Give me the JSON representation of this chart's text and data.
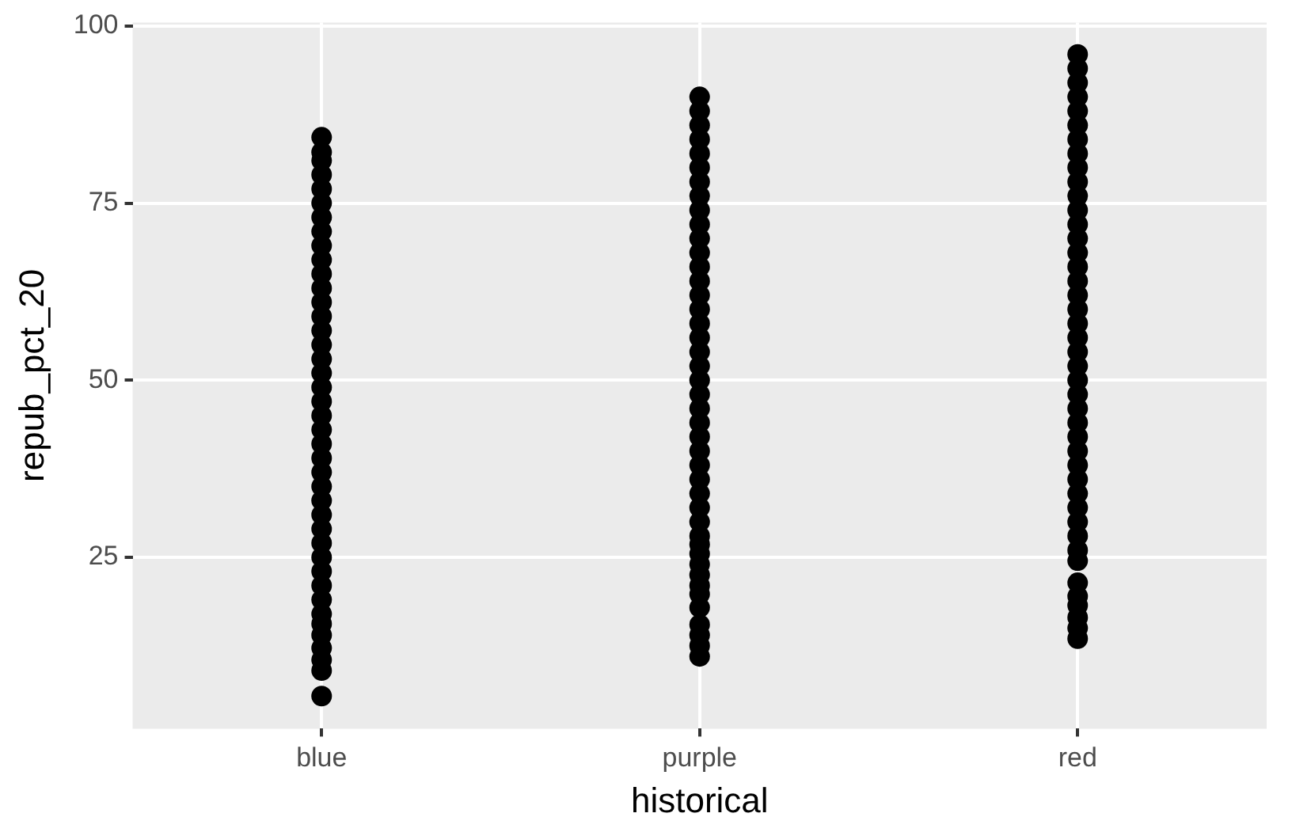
{
  "chart_data": {
    "type": "scatter",
    "categories": [
      "blue",
      "purple",
      "red"
    ],
    "xlabel": "historical",
    "ylabel": "repub_pct_20",
    "ylim": [
      0.8,
      100.5
    ],
    "yticks": [
      25,
      50,
      75,
      100
    ],
    "grid": true,
    "marker": "circle",
    "series": [
      {
        "color": "#000000",
        "x": [
          "blue",
          "blue",
          "blue",
          "blue",
          "blue",
          "blue",
          "blue",
          "blue",
          "blue",
          "blue",
          "blue",
          "blue",
          "blue",
          "blue",
          "blue",
          "blue",
          "blue",
          "blue",
          "blue",
          "blue",
          "blue",
          "blue",
          "blue",
          "blue",
          "blue",
          "blue",
          "blue",
          "blue",
          "blue",
          "blue",
          "blue",
          "blue",
          "blue",
          "blue",
          "blue",
          "blue",
          "blue",
          "blue",
          "blue",
          "blue",
          "blue"
        ],
        "values": [
          5.4,
          9,
          10.5,
          12.2,
          14,
          15.6,
          17,
          19,
          21,
          23,
          25,
          27,
          29,
          31,
          33,
          35,
          37,
          39,
          41,
          43,
          45,
          47,
          49,
          51,
          53,
          55,
          57,
          59,
          61,
          63,
          65,
          67,
          69,
          71,
          73,
          75,
          77,
          79,
          81,
          82.2,
          84.3
        ]
      },
      {
        "color": "#000000",
        "x": [
          "purple",
          "purple",
          "purple",
          "purple",
          "purple",
          "purple",
          "purple",
          "purple",
          "purple",
          "purple",
          "purple",
          "purple",
          "purple",
          "purple",
          "purple",
          "purple",
          "purple",
          "purple",
          "purple",
          "purple",
          "purple",
          "purple",
          "purple",
          "purple",
          "purple",
          "purple",
          "purple",
          "purple",
          "purple",
          "purple",
          "purple",
          "purple",
          "purple",
          "purple",
          "purple",
          "purple",
          "purple",
          "purple",
          "purple",
          "purple",
          "purple",
          "purple",
          "purple"
        ],
        "values": [
          11,
          12.5,
          14,
          15.5,
          null,
          17.9,
          19.8,
          21,
          22.5,
          24,
          25.5,
          26.8,
          28,
          30,
          32,
          34,
          36,
          38,
          40,
          42,
          44,
          46,
          48,
          50,
          52,
          54,
          56,
          58,
          60,
          62,
          64,
          66,
          68,
          70,
          72,
          74,
          76,
          78,
          80,
          82,
          84,
          86,
          88
        ]
      },
      {
        "color": "#000000",
        "x": [
          "purple"
        ],
        "values": [
          90
        ]
      },
      {
        "color": "#000000",
        "x": [
          "red",
          "red",
          "red",
          "red",
          "red",
          "red",
          "red",
          "red",
          "red",
          "red",
          "red",
          "red",
          "red",
          "red",
          "red",
          "red",
          "red",
          "red",
          "red",
          "red",
          "red",
          "red",
          "red",
          "red",
          "red",
          "red",
          "red",
          "red",
          "red",
          "red",
          "red",
          "red",
          "red",
          "red",
          "red",
          "red",
          "red",
          "red",
          "red",
          "red",
          "red",
          "red",
          "red",
          "red"
        ],
        "values": [
          13.5,
          15,
          16.5,
          18.2,
          19.5,
          21.4,
          null,
          24.5,
          26,
          28,
          30,
          32,
          34,
          36,
          38,
          40,
          42,
          44,
          46,
          48,
          50,
          52,
          54,
          56,
          58,
          60,
          62,
          64,
          66,
          68,
          70,
          72,
          74,
          76,
          78,
          80,
          82,
          84,
          86,
          88,
          90,
          92,
          94,
          96
        ]
      }
    ]
  }
}
